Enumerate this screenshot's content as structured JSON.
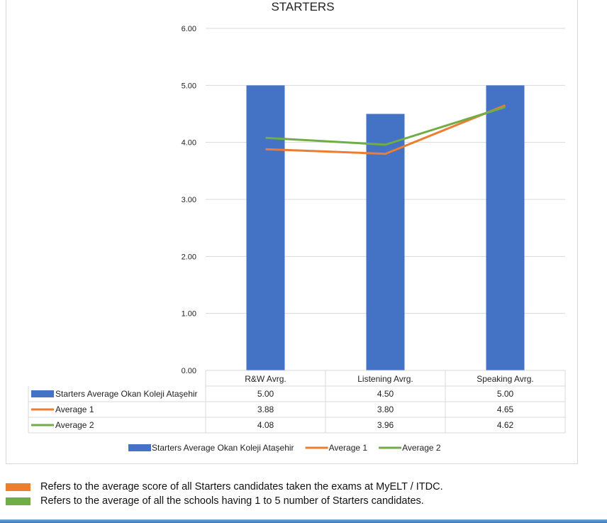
{
  "chart_data": {
    "type": "bar",
    "title": "STARTERS",
    "categories": [
      "R&W Avrg.",
      "Listening Avrg.",
      "Speaking Avrg."
    ],
    "ylim": [
      0,
      6
    ],
    "yticks": [
      "0.00",
      "1.00",
      "2.00",
      "3.00",
      "4.00",
      "5.00",
      "6.00"
    ],
    "grid": true,
    "legend_position": "bottom",
    "series": [
      {
        "name": "Starters Average Okan Koleji Ataşehir",
        "kind": "bar",
        "color": "#4472C4",
        "values": [
          5.0,
          4.5,
          5.0
        ],
        "labels": [
          "5.00",
          "4.50",
          "5.00"
        ]
      },
      {
        "name": "Average 1",
        "kind": "line",
        "color": "#ED7D31",
        "values": [
          3.88,
          3.8,
          4.65
        ],
        "labels": [
          "3.88",
          "3.80",
          "4.65"
        ]
      },
      {
        "name": "Average 2",
        "kind": "line",
        "color": "#70AD47",
        "values": [
          4.08,
          3.96,
          4.62
        ],
        "labels": [
          "4.08",
          "3.96",
          "4.62"
        ]
      }
    ]
  },
  "notes": [
    {
      "color": "#ED7D31",
      "text": "Refers to the average score of all Starters candidates taken the exams at MyELT / ITDC."
    },
    {
      "color": "#70AD47",
      "text": "Refers to the average of all the schools having 1 to 5 number of Starters candidates."
    }
  ]
}
